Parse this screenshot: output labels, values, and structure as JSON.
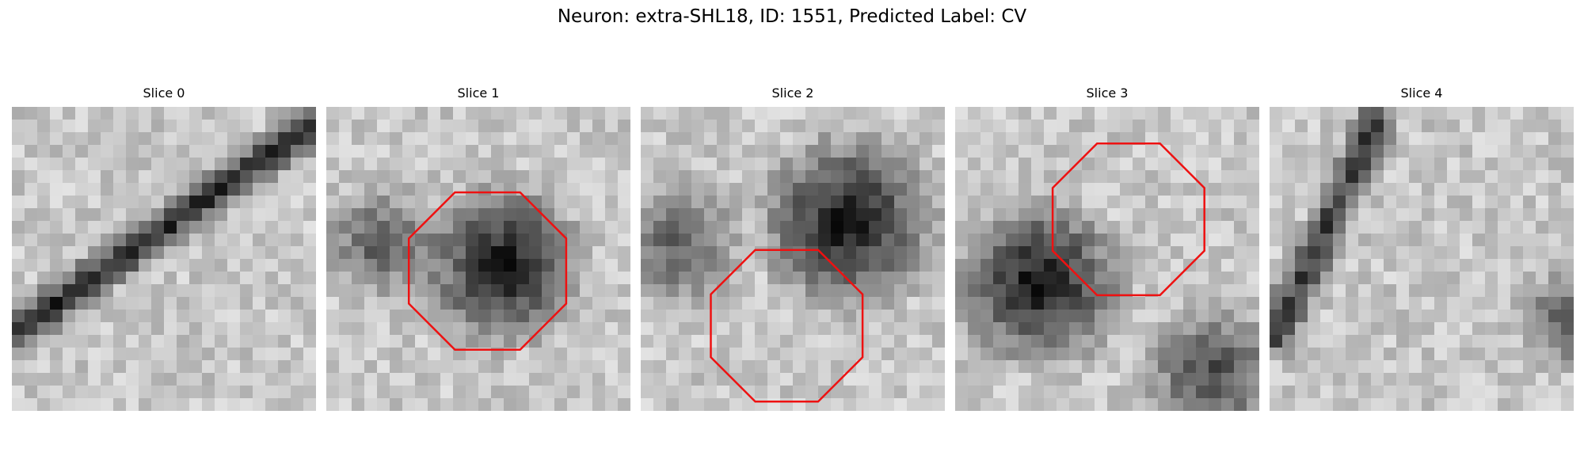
{
  "figure": {
    "title": "Neuron: extra-SHL18, ID: 1551, Predicted Label: CV",
    "outline_color": "#ee1111"
  },
  "panels": [
    {
      "label": "Slice 0",
      "has_outline": false,
      "features": [
        {
          "kind": "dark-band",
          "from": [
            1.0,
            0.05
          ],
          "to": [
            0.0,
            0.75
          ],
          "strength": 0.55
        }
      ]
    },
    {
      "label": "Slice 1",
      "has_outline": true,
      "outline": {
        "center": [
          0.53,
          0.54
        ],
        "radius": 0.28
      },
      "features": [
        {
          "kind": "dark-blob",
          "center": [
            0.58,
            0.52
          ],
          "radius": 0.22,
          "strength": 0.6
        },
        {
          "kind": "dark-blob",
          "center": [
            0.18,
            0.45
          ],
          "radius": 0.16,
          "strength": 0.35
        }
      ]
    },
    {
      "label": "Slice 2",
      "has_outline": true,
      "outline": {
        "center": [
          0.48,
          0.72
        ],
        "radius": 0.27
      },
      "features": [
        {
          "kind": "dark-blob",
          "center": [
            0.68,
            0.38
          ],
          "radius": 0.24,
          "strength": 0.6
        },
        {
          "kind": "dark-blob",
          "center": [
            0.12,
            0.45
          ],
          "radius": 0.18,
          "strength": 0.35
        }
      ]
    },
    {
      "label": "Slice 3",
      "has_outline": true,
      "outline": {
        "center": [
          0.57,
          0.37
        ],
        "radius": 0.27
      },
      "features": [
        {
          "kind": "dark-blob",
          "center": [
            0.28,
            0.58
          ],
          "radius": 0.23,
          "strength": 0.6
        },
        {
          "kind": "dark-blob",
          "center": [
            0.85,
            0.88
          ],
          "radius": 0.2,
          "strength": 0.4
        }
      ]
    },
    {
      "label": "Slice 4",
      "has_outline": false,
      "features": [
        {
          "kind": "dark-band",
          "from": [
            0.35,
            0.05
          ],
          "to": [
            0.02,
            0.75
          ],
          "strength": 0.5
        },
        {
          "kind": "dark-blob",
          "center": [
            0.98,
            0.7
          ],
          "radius": 0.14,
          "strength": 0.35
        }
      ]
    }
  ]
}
